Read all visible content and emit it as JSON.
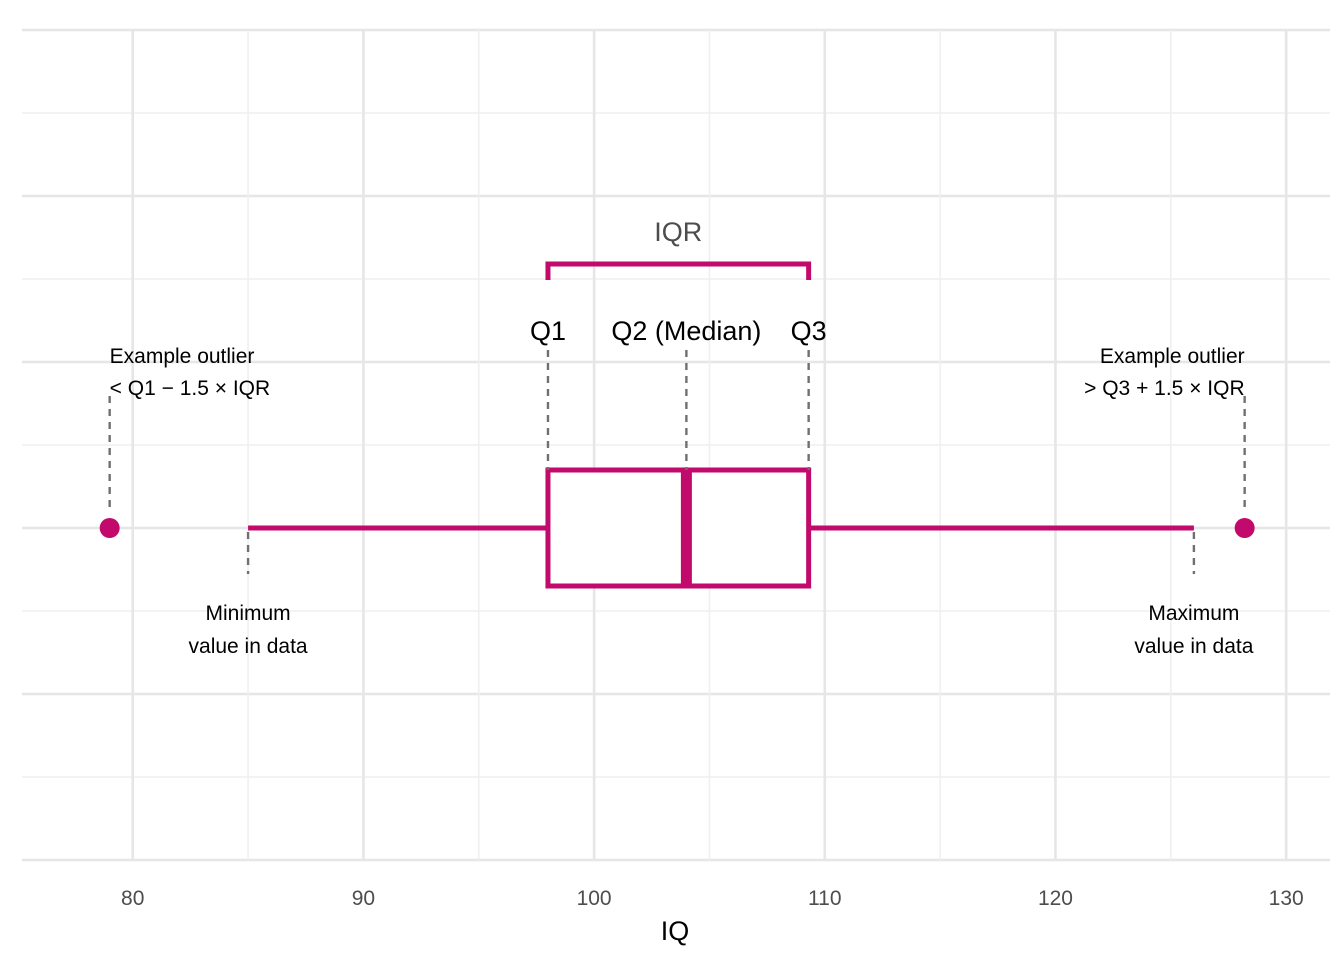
{
  "chart_data": {
    "type": "boxplot",
    "xlabel": "IQ",
    "xlim": [
      75.2,
      131.9
    ],
    "x_ticks": [
      80,
      90,
      100,
      110,
      120,
      130
    ],
    "x_tick_labels": [
      "80",
      "90",
      "100",
      "110",
      "120",
      "130"
    ],
    "grid": true,
    "color": "#c20a6d",
    "box": {
      "whisker_low": 85,
      "q1": 98,
      "median": 104,
      "q3": 109.3,
      "whisker_high": 126
    },
    "outliers": [
      79,
      128.2
    ],
    "annotations": {
      "iqr": "IQR",
      "q1": "Q1",
      "median": "Q2 (Median)",
      "q3": "Q3",
      "outlier_low": [
        "Example outlier",
        "< Q1 − 1.5 × IQR"
      ],
      "outlier_high": [
        "Example outlier",
        "> Q3 + 1.5 × IQR"
      ],
      "minimum": [
        "Minimum",
        "value in data"
      ],
      "maximum": [
        "Maximum",
        "value in data"
      ]
    }
  }
}
